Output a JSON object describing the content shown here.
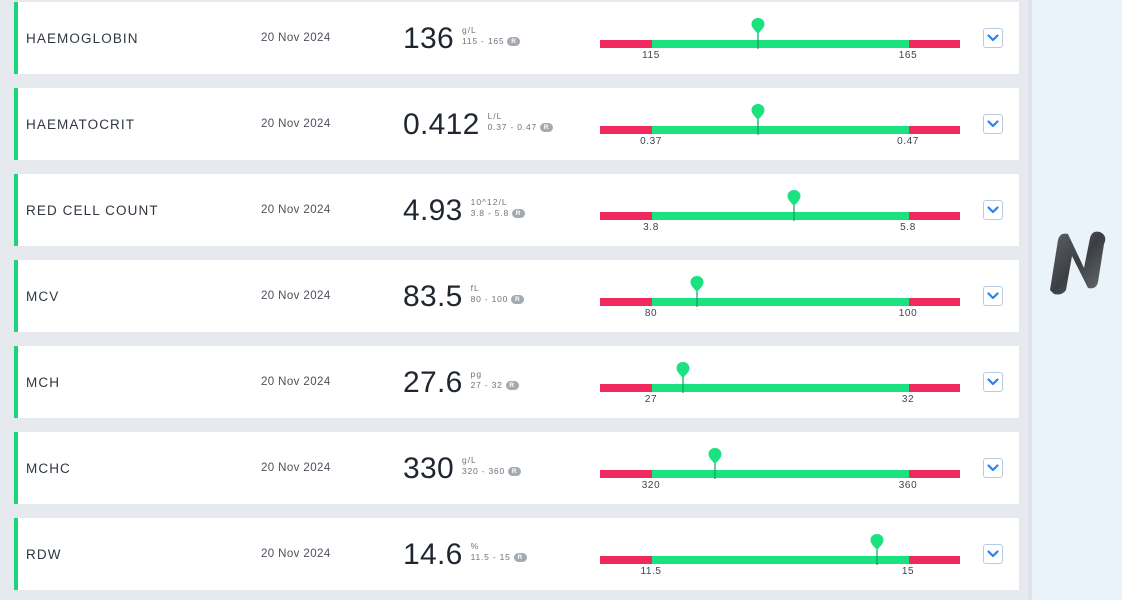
{
  "tests": [
    {
      "name": "HAEMOGLOBIN",
      "date": "20 Nov 2024",
      "value": "136",
      "unit": "g/L",
      "range": "115 - 165",
      "low_label": "115",
      "high_label": "165",
      "marker_fraction": 0.44
    },
    {
      "name": "HAEMATOCRIT",
      "date": "20 Nov 2024",
      "value": "0.412",
      "unit": "L/L",
      "range": "0.37 - 0.47",
      "low_label": "0.37",
      "high_label": "0.47",
      "marker_fraction": 0.44
    },
    {
      "name": "RED CELL COUNT",
      "date": "20 Nov 2024",
      "value": "4.93",
      "unit": "10^12/L",
      "range": "3.8 - 5.8",
      "low_label": "3.8",
      "high_label": "5.8",
      "marker_fraction": 0.54
    },
    {
      "name": "MCV",
      "date": "20 Nov 2024",
      "value": "83.5",
      "unit": "fL",
      "range": "80 - 100",
      "low_label": "80",
      "high_label": "100",
      "marker_fraction": 0.27
    },
    {
      "name": "MCH",
      "date": "20 Nov 2024",
      "value": "27.6",
      "unit": "pg",
      "range": "27 - 32",
      "low_label": "27",
      "high_label": "32",
      "marker_fraction": 0.23
    },
    {
      "name": "MCHC",
      "date": "20 Nov 2024",
      "value": "330",
      "unit": "g/L",
      "range": "320 - 360",
      "low_label": "320",
      "high_label": "360",
      "marker_fraction": 0.32
    },
    {
      "name": "RDW",
      "date": "20 Nov 2024",
      "value": "14.6",
      "unit": "%",
      "range": "11.5 - 15",
      "low_label": "11.5",
      "high_label": "15",
      "marker_fraction": 0.77
    }
  ],
  "range_badge": "R",
  "icons": {
    "expand": "chevron-down-icon",
    "marker": "map-pin-icon",
    "logo": "brand-logo-icon"
  },
  "colors": {
    "accent_green": "#19e27f",
    "out_of_range_red": "#f0295f",
    "chevron_blue": "#2f80ed"
  }
}
